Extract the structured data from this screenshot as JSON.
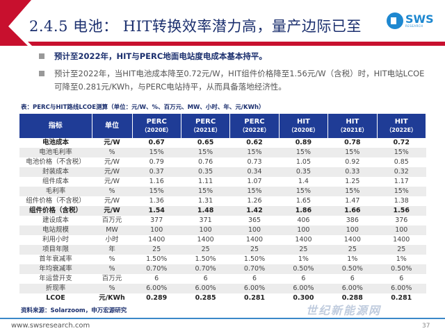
{
  "header": {
    "title": "2.4.5 电池： HIT转换效率潜力高，量产边际已至",
    "logo_text": "SWS",
    "logo_sub": "RESEARCH"
  },
  "bullets": [
    "预计至2022年，HIT与PERC地面电站度电成本基本持平。",
    "预计至2022年，当HIT电池成本降至0.72元/W，HIT组件价格降至1.56元/W（含税）时，HIT电站LCOE可降至0.281元/KWh，与PERC电站持平，从而具备落地经济性。"
  ],
  "table": {
    "caption": "表：PERC与HIT路线LCOE测算（单位：元/W、%、百万元、MW、小时、年、元/KWh）",
    "headers": [
      {
        "l": "指标",
        "s": ""
      },
      {
        "l": "单位",
        "s": ""
      },
      {
        "l": "PERC",
        "s": "（2020E）"
      },
      {
        "l": "PERC",
        "s": "（2021E）"
      },
      {
        "l": "PERC",
        "s": "（2022E）"
      },
      {
        "l": "HIT",
        "s": "（2020E）"
      },
      {
        "l": "HIT",
        "s": "（2021E）"
      },
      {
        "l": "HIT",
        "s": "（2022E）"
      }
    ],
    "rows": [
      {
        "bold": true,
        "cells": [
          "电池成本",
          "元/W",
          "0.67",
          "0.65",
          "0.62",
          "0.89",
          "0.78",
          "0.72"
        ]
      },
      {
        "bold": false,
        "cells": [
          "电池毛利率",
          "%",
          "15%",
          "15%",
          "15%",
          "15%",
          "15%",
          "15%"
        ]
      },
      {
        "bold": false,
        "cells": [
          "电池价格（不含税）",
          "元/W",
          "0.79",
          "0.76",
          "0.73",
          "1.05",
          "0.92",
          "0.85"
        ]
      },
      {
        "bold": false,
        "cells": [
          "封装成本",
          "元/W",
          "0.37",
          "0.35",
          "0.34",
          "0.35",
          "0.33",
          "0.32"
        ]
      },
      {
        "bold": false,
        "cells": [
          "组件成本",
          "元/W",
          "1.16",
          "1.11",
          "1.07",
          "1.4",
          "1.25",
          "1.17"
        ]
      },
      {
        "bold": false,
        "cells": [
          "毛利率",
          "%",
          "15%",
          "15%",
          "15%",
          "15%",
          "15%",
          "15%"
        ]
      },
      {
        "bold": false,
        "cells": [
          "组件价格（不含税）",
          "元/W",
          "1.36",
          "1.31",
          "1.26",
          "1.65",
          "1.47",
          "1.38"
        ]
      },
      {
        "bold": true,
        "cells": [
          "组件价格（含税）",
          "元/W",
          "1.54",
          "1.48",
          "1.42",
          "1.86",
          "1.66",
          "1.56"
        ]
      },
      {
        "bold": false,
        "cells": [
          "建设成本",
          "百万元",
          "377",
          "371",
          "365",
          "406",
          "386",
          "376"
        ]
      },
      {
        "bold": false,
        "cells": [
          "电站规模",
          "MW",
          "100",
          "100",
          "100",
          "100",
          "100",
          "100"
        ]
      },
      {
        "bold": false,
        "cells": [
          "利用小时",
          "小时",
          "1400",
          "1400",
          "1400",
          "1400",
          "1400",
          "1400"
        ]
      },
      {
        "bold": false,
        "cells": [
          "项目年限",
          "年",
          "25",
          "25",
          "25",
          "25",
          "25",
          "25"
        ]
      },
      {
        "bold": false,
        "cells": [
          "首年衰减率",
          "%",
          "1.50%",
          "1.50%",
          "1.50%",
          "1%",
          "1%",
          "1%"
        ]
      },
      {
        "bold": false,
        "cells": [
          "年均衰减率",
          "%",
          "0.70%",
          "0.70%",
          "0.70%",
          "0.50%",
          "0.50%",
          "0.50%"
        ]
      },
      {
        "bold": false,
        "cells": [
          "年运营开支",
          "百万元",
          "6",
          "6",
          "6",
          "6",
          "6",
          "6"
        ]
      },
      {
        "bold": false,
        "cells": [
          "折现率",
          "%",
          "6.00%",
          "6.00%",
          "6.00%",
          "6.00%",
          "6.00%",
          "6.00%"
        ]
      },
      {
        "bold": true,
        "cells": [
          "LCOE",
          "元/KWh",
          "0.289",
          "0.285",
          "0.281",
          "0.300",
          "0.288",
          "0.281"
        ]
      }
    ],
    "source": "资料来源：Solarzoom，申万宏源研究"
  },
  "footer": {
    "url": "www.swsresearch.com",
    "page": "37"
  },
  "watermark": "世纪新能源网",
  "colors": {
    "title": "#1b2f6e",
    "header_bg": "#1f3c96",
    "accent_red": "#c8102e",
    "footer_line": "#3a88c8"
  }
}
